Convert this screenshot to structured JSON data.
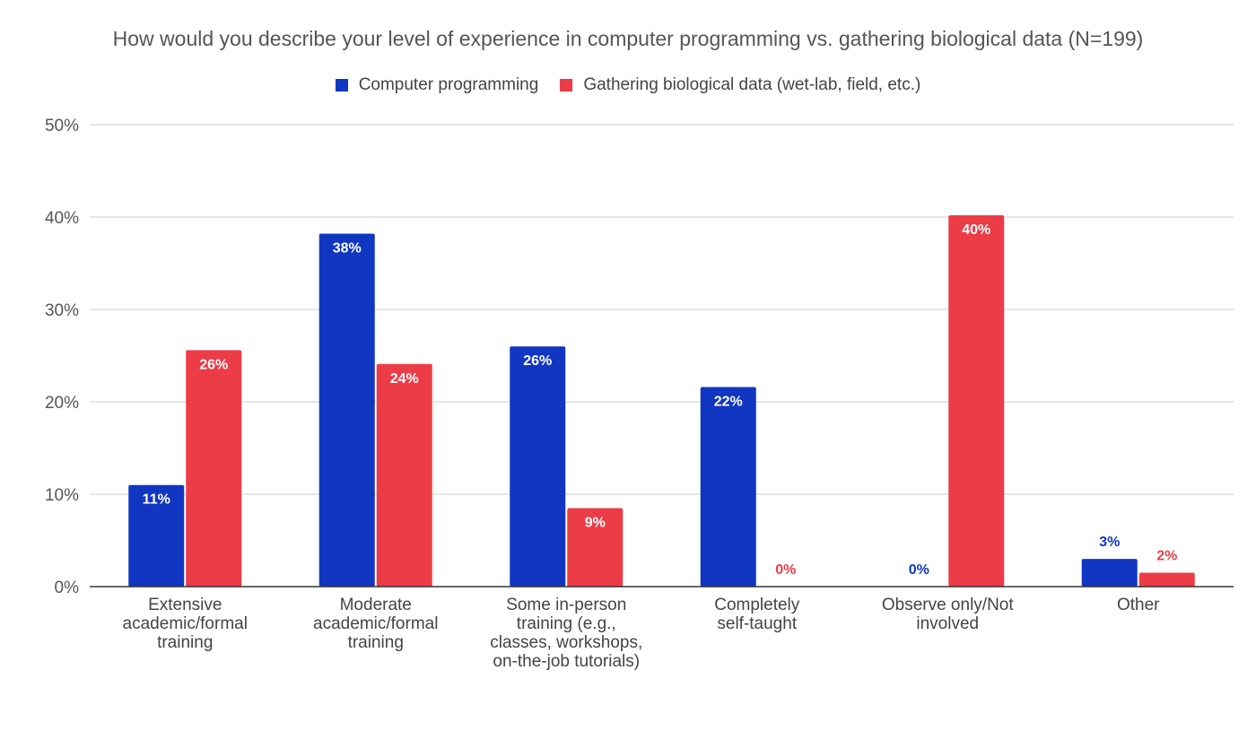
{
  "chart_data": {
    "type": "bar",
    "title": "How would you describe your level of experience in computer programming vs. gathering biological data (N=199)",
    "xlabel": "",
    "ylabel": "",
    "ylim": [
      0,
      50
    ],
    "y_ticks": [
      0,
      10,
      20,
      30,
      40,
      50
    ],
    "y_tick_labels": [
      "0%",
      "10%",
      "20%",
      "30%",
      "40%",
      "50%"
    ],
    "grid": true,
    "legend_position": "top-center",
    "categories": [
      [
        "Extensive",
        "academic/formal",
        "training"
      ],
      [
        "Moderate",
        "academic/formal",
        "training"
      ],
      [
        "Some in-person",
        "training (e.g.,",
        "classes, workshops,",
        "on-the-job tutorials)"
      ],
      [
        "Completely",
        "self-taught"
      ],
      [
        "Observe only/Not",
        "involved"
      ],
      [
        "Other"
      ]
    ],
    "series": [
      {
        "name": "Computer programming",
        "color": "#1136c2",
        "values": [
          11,
          38.2,
          26,
          21.6,
          0,
          3
        ],
        "labels": [
          "11%",
          "38%",
          "26%",
          "22%",
          "0%",
          "3%"
        ]
      },
      {
        "name": "Gathering biological data (wet-lab, field, etc.)",
        "color": "#ec3c47",
        "values": [
          25.6,
          24.1,
          8.5,
          0,
          40.2,
          1.5
        ],
        "labels": [
          "26%",
          "24%",
          "9%",
          "0%",
          "40%",
          "2%"
        ]
      }
    ]
  }
}
